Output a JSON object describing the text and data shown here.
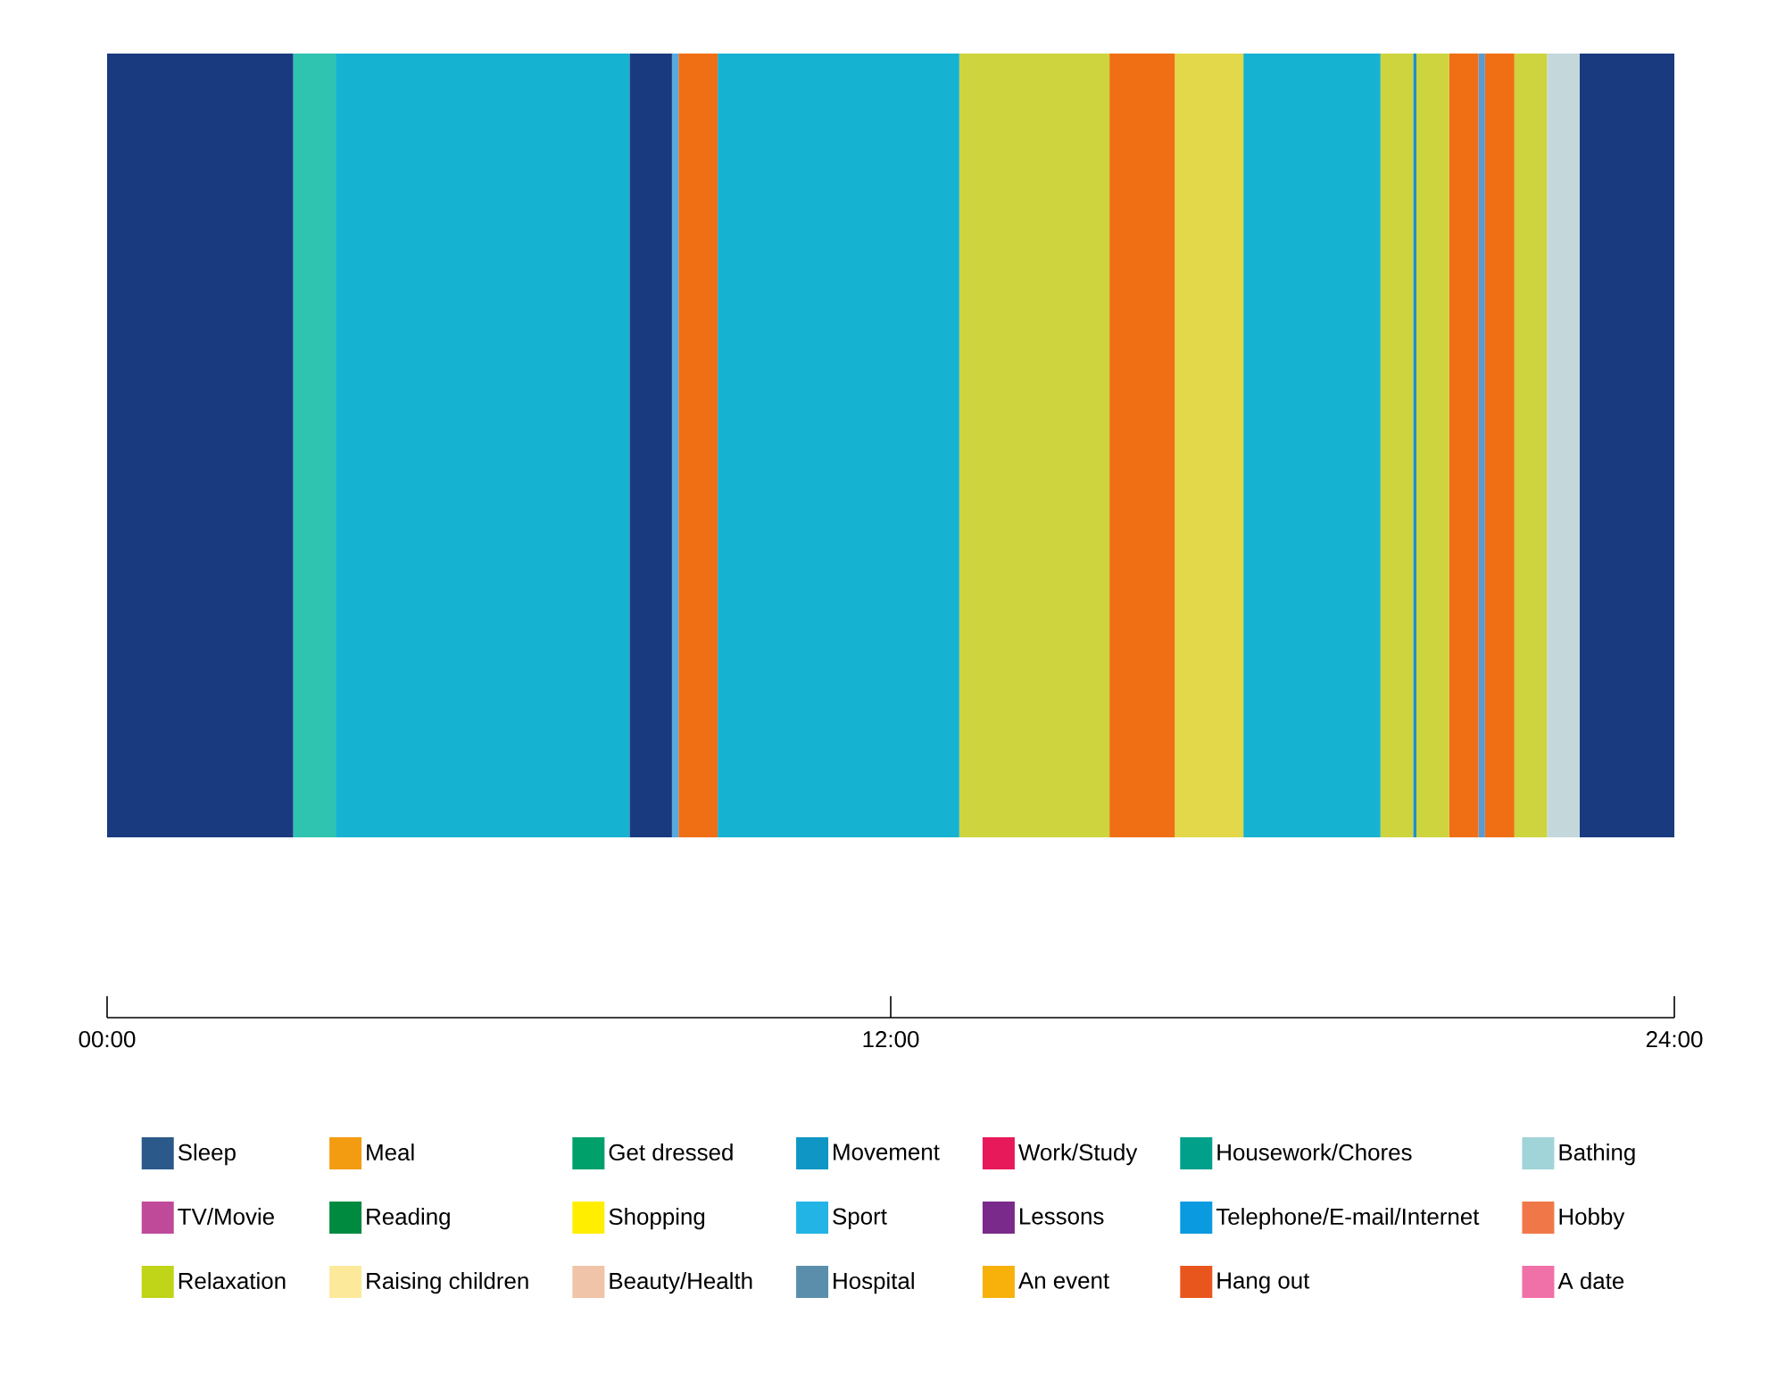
{
  "chart_data": {
    "type": "bar",
    "orientation": "horizontal",
    "stacked": true,
    "categories": [
      null
    ],
    "xlim": [
      0,
      24
    ],
    "xticks": [
      {
        "value": 0,
        "label": "00:00"
      },
      {
        "value": 12,
        "label": "12:00"
      },
      {
        "value": 24,
        "label": "24:00"
      }
    ],
    "legend": "bottom",
    "series": [
      {
        "color": "#1a3a80",
        "values": [
          2.85
        ]
      },
      {
        "color": "#2ec4b0",
        "values": [
          0.65
        ]
      },
      {
        "color": "#16b2d2",
        "values": [
          4.5
        ]
      },
      {
        "color": "#1a3a80",
        "values": [
          0.65
        ]
      },
      {
        "color": "#5aa8e0",
        "values": [
          0.1
        ]
      },
      {
        "color": "#f06e14",
        "values": [
          0.6
        ]
      },
      {
        "color": "#16b2d2",
        "values": [
          3.7
        ]
      },
      {
        "color": "#cdd43e",
        "values": [
          2.3
        ]
      },
      {
        "color": "#f06e14",
        "values": [
          1.0
        ]
      },
      {
        "color": "#e2d84a",
        "values": [
          1.05
        ]
      },
      {
        "color": "#16b2d2",
        "values": [
          2.1
        ]
      },
      {
        "color": "#cdd43e",
        "values": [
          0.5
        ]
      },
      {
        "color": "#1e90c8",
        "values": [
          0.05
        ]
      },
      {
        "color": "#cdd43e",
        "values": [
          0.5
        ]
      },
      {
        "color": "#f06e14",
        "values": [
          0.45
        ]
      },
      {
        "color": "#5a9ad0",
        "values": [
          0.1
        ]
      },
      {
        "color": "#f06e14",
        "values": [
          0.45
        ]
      },
      {
        "color": "#cdd43e",
        "values": [
          0.5
        ]
      },
      {
        "color": "#c4d8dc",
        "values": [
          0.5
        ]
      },
      {
        "color": "#1a3a80",
        "values": [
          1.45
        ]
      },
      {
        "name": "Sleep",
        "color": "#2b5a8a",
        "values": [
          null
        ]
      },
      {
        "name": "Meal",
        "color": "#f39c12",
        "values": [
          null
        ]
      },
      {
        "name": "Get dressed",
        "color": "#00a06a",
        "values": [
          null
        ]
      },
      {
        "name": "Movement",
        "color": "#1096c4",
        "values": [
          null
        ]
      },
      {
        "name": "Work/Study",
        "color": "#e8195a",
        "values": [
          null
        ]
      },
      {
        "name": "Housework/Chores",
        "color": "#00a08a",
        "values": [
          null
        ]
      },
      {
        "name": "Bathing",
        "color": "#a0d4d8",
        "values": [
          null
        ]
      },
      {
        "name": "TV/Movie",
        "color": "#c04a9a",
        "values": [
          null
        ]
      },
      {
        "name": "Reading",
        "color": "#008a40",
        "values": [
          null
        ]
      },
      {
        "name": "Shopping",
        "color": "#ffee00",
        "values": [
          null
        ]
      },
      {
        "name": "Sport",
        "color": "#22b4e4",
        "values": [
          null
        ]
      },
      {
        "name": "Lessons",
        "color": "#7a2a8a",
        "values": [
          null
        ]
      },
      {
        "name": "Telephone/E-mail/Internet",
        "color": "#0a9ae0",
        "values": [
          null
        ]
      },
      {
        "name": "Hobby",
        "color": "#f07848",
        "values": [
          null
        ]
      },
      {
        "name": "Relaxation",
        "color": "#c0d418",
        "values": [
          null
        ]
      },
      {
        "name": "Raising children",
        "color": "#fde99a",
        "values": [
          null
        ]
      },
      {
        "name": "Beauty/Health",
        "color": "#f0c4a8",
        "values": [
          null
        ]
      },
      {
        "name": "Hospital",
        "color": "#5a8eaa",
        "values": [
          null
        ]
      },
      {
        "name": "An event",
        "color": "#f7b10a",
        "values": [
          null
        ]
      },
      {
        "name": "Hang out",
        "color": "#e8561e",
        "values": [
          null
        ]
      },
      {
        "name": "A date",
        "color": "#f070a8",
        "values": [
          null
        ]
      }
    ]
  }
}
